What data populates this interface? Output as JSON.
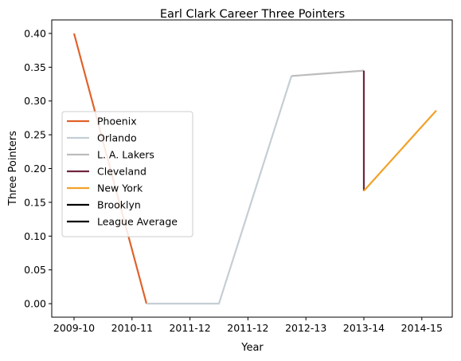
{
  "chart_data": {
    "type": "line",
    "title": "Earl Clark Career Three Pointers",
    "xlabel": "Year",
    "ylabel": "Three Pointers",
    "x_ticks": [
      "2009-10",
      "2010-11",
      "2011-12",
      "2011-12",
      "2012-13",
      "2013-14",
      "2014-15"
    ],
    "ylim": [
      -0.02,
      0.42
    ],
    "y_ticks": [
      "0.00",
      "0.05",
      "0.10",
      "0.15",
      "0.20",
      "0.25",
      "0.30",
      "0.35",
      "0.40"
    ],
    "grid": false,
    "legend_position": "center-left",
    "series": [
      {
        "name": "Phoenix",
        "color": "#e0622a",
        "points": [
          [
            0,
            0.4
          ],
          [
            1.25,
            0.0
          ]
        ]
      },
      {
        "name": "Orlando",
        "color": "#c4ced4",
        "points": [
          [
            1.25,
            0.0
          ],
          [
            2.5,
            0.0
          ],
          [
            3.75,
            0.337
          ]
        ]
      },
      {
        "name": "L. A. Lakers",
        "color": "#bdbdbd",
        "points": [
          [
            3.75,
            0.337
          ],
          [
            5.0,
            0.345
          ]
        ]
      },
      {
        "name": "Cleveland",
        "color": "#6f263d",
        "points": [
          [
            5.0,
            0.345
          ],
          [
            5.0,
            0.167
          ]
        ]
      },
      {
        "name": "New York",
        "color": "#f2a129",
        "points": [
          [
            5.0,
            0.167
          ],
          [
            6.25,
            0.286
          ]
        ]
      },
      {
        "name": "Brooklyn",
        "color": "#000000",
        "points": []
      },
      {
        "name": "League Average",
        "color": "#000000",
        "points": []
      }
    ]
  }
}
